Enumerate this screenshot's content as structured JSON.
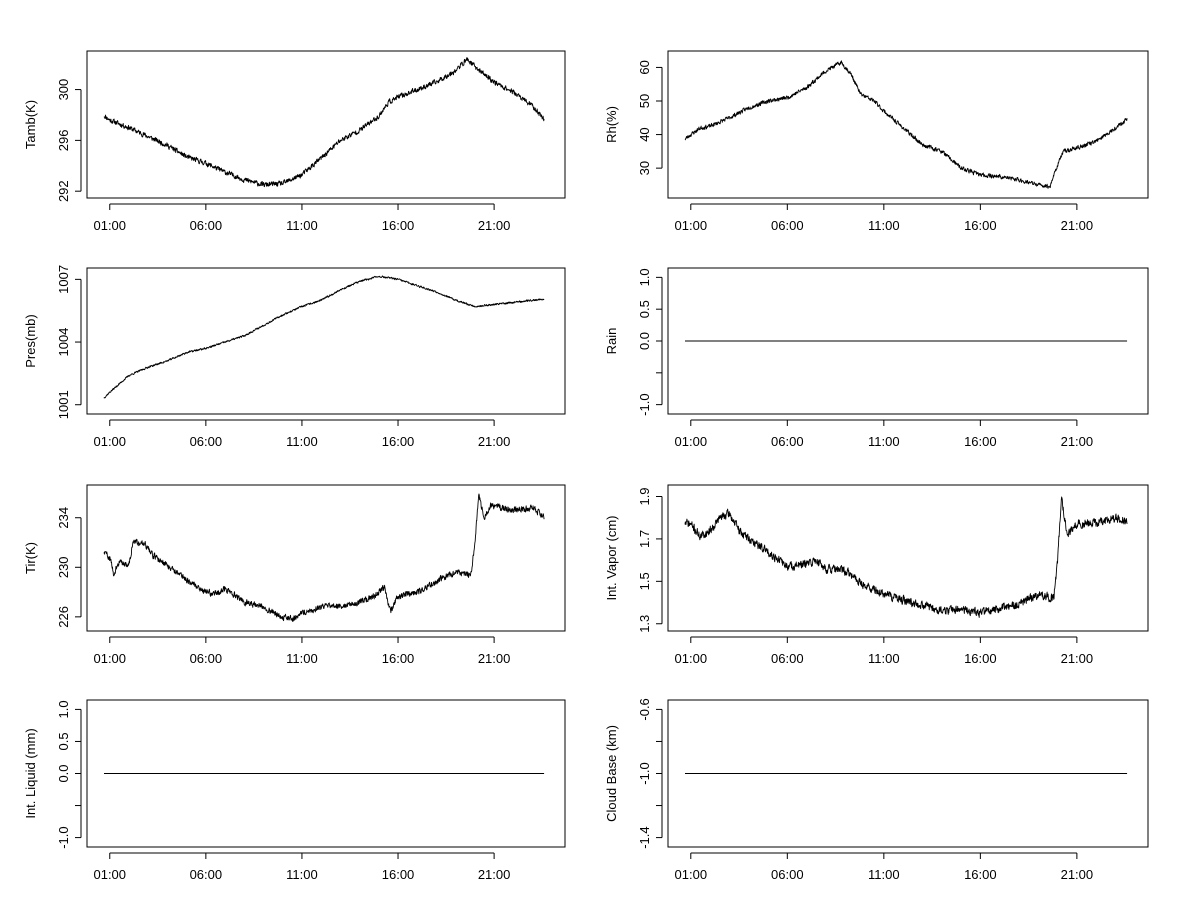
{
  "figure": {
    "background": "#ffffff",
    "line_color": "#000000"
  },
  "chart_data": [
    {
      "type": "line",
      "ylabel": "Tamb(K)",
      "x_ticks": [
        "01:00",
        "06:00",
        "11:00",
        "16:00",
        "21:00"
      ],
      "x_tick_hours": [
        1,
        6,
        11,
        16,
        21
      ],
      "xlim": [
        0,
        24
      ],
      "ylim": [
        291.7,
        302.8
      ],
      "y_ticks": [
        292,
        296,
        300
      ],
      "y_tick_labels": [
        "292",
        "296",
        "300"
      ],
      "series": [
        {
          "name": "Tamb(K)",
          "anchors": [
            [
              0,
              299.3
            ],
            [
              0.5,
              298.2
            ],
            [
              1,
              297.6
            ],
            [
              2,
              297.0
            ],
            [
              3,
              296.3
            ],
            [
              4,
              295.6
            ],
            [
              5,
              294.7
            ],
            [
              6,
              294.2
            ],
            [
              7,
              293.5
            ],
            [
              8,
              292.9
            ],
            [
              9,
              292.5
            ],
            [
              10,
              292.6
            ],
            [
              11,
              293.3
            ],
            [
              12,
              294.6
            ],
            [
              13,
              296.0
            ],
            [
              14,
              296.8
            ],
            [
              15,
              297.9
            ],
            [
              15.5,
              299.0
            ],
            [
              16,
              299.4
            ],
            [
              17,
              300.0
            ],
            [
              18,
              300.6
            ],
            [
              19,
              301.5
            ],
            [
              19.6,
              302.4
            ],
            [
              20,
              301.8
            ],
            [
              21,
              300.6
            ],
            [
              22,
              299.8
            ],
            [
              23,
              298.7
            ],
            [
              24,
              297.0
            ]
          ],
          "noise": 0.18,
          "seed": 11
        }
      ]
    },
    {
      "type": "line",
      "ylabel": "Rh(%)",
      "x_ticks": [
        "01:00",
        "06:00",
        "11:00",
        "16:00",
        "21:00"
      ],
      "x_tick_hours": [
        1,
        6,
        11,
        16,
        21
      ],
      "xlim": [
        0,
        24
      ],
      "ylim": [
        22,
        64
      ],
      "y_ticks": [
        30,
        40,
        50,
        60
      ],
      "y_tick_labels": [
        "30",
        "40",
        "50",
        "60"
      ],
      "series": [
        {
          "name": "Rh(%)",
          "anchors": [
            [
              0,
              35.5
            ],
            [
              1,
              40
            ],
            [
              1.5,
              42
            ],
            [
              2,
              42.5
            ],
            [
              3,
              45
            ],
            [
              4,
              48
            ],
            [
              5,
              50
            ],
            [
              6,
              51
            ],
            [
              7,
              54
            ],
            [
              8,
              59
            ],
            [
              8.8,
              61.5
            ],
            [
              9.3,
              58
            ],
            [
              9.8,
              52
            ],
            [
              10.5,
              50
            ],
            [
              11,
              47
            ],
            [
              12,
              42
            ],
            [
              13,
              37
            ],
            [
              14,
              35
            ],
            [
              15,
              30
            ],
            [
              16,
              28
            ],
            [
              17,
              27.5
            ],
            [
              18,
              26.5
            ],
            [
              19,
              25
            ],
            [
              19.6,
              24.5
            ],
            [
              20,
              31
            ],
            [
              20.3,
              35
            ],
            [
              21,
              36
            ],
            [
              22,
              38
            ],
            [
              23,
              42
            ],
            [
              24,
              46.5
            ]
          ],
          "noise": 0.55,
          "seed": 23
        }
      ]
    },
    {
      "type": "line",
      "ylabel": "Pres(mb)",
      "x_ticks": [
        "01:00",
        "06:00",
        "11:00",
        "16:00",
        "21:00"
      ],
      "x_tick_hours": [
        1,
        6,
        11,
        16,
        21
      ],
      "xlim": [
        0,
        24
      ],
      "ylim": [
        1000.7,
        1007.4
      ],
      "y_ticks": [
        1001,
        1004,
        1007
      ],
      "y_tick_labels": [
        "1001",
        "1004",
        "1007"
      ],
      "series": [
        {
          "name": "Pres(mb)",
          "anchors": [
            [
              0,
              1001.0
            ],
            [
              0.5,
              1001.15
            ],
            [
              1,
              1001.6
            ],
            [
              2,
              1002.4
            ],
            [
              3,
              1002.8
            ],
            [
              4,
              1003.1
            ],
            [
              5,
              1003.5
            ],
            [
              6,
              1003.7
            ],
            [
              7,
              1004.0
            ],
            [
              8,
              1004.3
            ],
            [
              9,
              1004.8
            ],
            [
              10,
              1005.3
            ],
            [
              11,
              1005.7
            ],
            [
              12,
              1006.0
            ],
            [
              13,
              1006.5
            ],
            [
              14,
              1006.9
            ],
            [
              15,
              1007.15
            ],
            [
              16,
              1007.0
            ],
            [
              17,
              1006.7
            ],
            [
              18,
              1006.4
            ],
            [
              19,
              1006.0
            ],
            [
              20,
              1005.7
            ],
            [
              21,
              1005.8
            ],
            [
              22,
              1005.9
            ],
            [
              23,
              1006.0
            ],
            [
              24,
              1006.1
            ]
          ],
          "noise": 0.04,
          "seed": 37
        }
      ]
    },
    {
      "type": "line",
      "ylabel": "Rain",
      "x_ticks": [
        "01:00",
        "06:00",
        "11:00",
        "16:00",
        "21:00"
      ],
      "x_tick_hours": [
        1,
        6,
        11,
        16,
        21
      ],
      "xlim": [
        0,
        24
      ],
      "ylim": [
        -1.1,
        1.1
      ],
      "y_ticks": [
        -1.0,
        -0.5,
        0.0,
        0.5,
        1.0
      ],
      "y_tick_labels": [
        "-1.0",
        "",
        "0.0",
        "0.5",
        "1.0"
      ],
      "series": [
        {
          "name": "Rain",
          "anchors": [
            [
              0,
              0
            ],
            [
              24,
              0
            ]
          ],
          "noise": 0,
          "seed": 1
        }
      ]
    },
    {
      "type": "line",
      "ylabel": "Tir(K)",
      "x_ticks": [
        "01:00",
        "06:00",
        "11:00",
        "16:00",
        "21:00"
      ],
      "x_tick_hours": [
        1,
        6,
        11,
        16,
        21
      ],
      "xlim": [
        0,
        24
      ],
      "ylim": [
        225.1,
        236.4
      ],
      "y_ticks": [
        226,
        230,
        234
      ],
      "y_tick_labels": [
        "226",
        "230",
        "234"
      ],
      "series": [
        {
          "name": "Tir(K)",
          "anchors": [
            [
              0,
              232.2
            ],
            [
              0.5,
              231.5
            ],
            [
              1,
              230.8
            ],
            [
              1.2,
              229.5
            ],
            [
              1.5,
              230.4
            ],
            [
              2,
              230.2
            ],
            [
              2.2,
              232.0
            ],
            [
              2.8,
              232.0
            ],
            [
              3.2,
              231.0
            ],
            [
              4,
              230.2
            ],
            [
              5,
              229.0
            ],
            [
              6,
              228.0
            ],
            [
              6.5,
              227.9
            ],
            [
              7,
              228.3
            ],
            [
              8,
              227.2
            ],
            [
              9,
              226.8
            ],
            [
              10,
              226.0
            ],
            [
              10.5,
              225.8
            ],
            [
              11,
              226.3
            ],
            [
              12,
              226.8
            ],
            [
              13,
              226.9
            ],
            [
              14,
              227.2
            ],
            [
              14.8,
              227.7
            ],
            [
              15.3,
              228.4
            ],
            [
              15.6,
              226.4
            ],
            [
              16,
              227.7
            ],
            [
              17,
              228.0
            ],
            [
              18,
              228.9
            ],
            [
              19,
              229.6
            ],
            [
              19.8,
              229.4
            ],
            [
              20,
              232.0
            ],
            [
              20.2,
              235.8
            ],
            [
              20.5,
              234.0
            ],
            [
              20.8,
              235.0
            ],
            [
              22,
              234.6
            ],
            [
              23,
              234.8
            ],
            [
              24,
              233.6
            ]
          ],
          "noise": 0.22,
          "seed": 59
        }
      ]
    },
    {
      "type": "line",
      "ylabel": "Int. Vapor (cm)",
      "x_ticks": [
        "01:00",
        "06:00",
        "11:00",
        "16:00",
        "21:00"
      ],
      "x_tick_hours": [
        1,
        6,
        11,
        16,
        21
      ],
      "xlim": [
        0,
        24
      ],
      "ylim": [
        1.28,
        1.94
      ],
      "y_ticks": [
        1.3,
        1.5,
        1.7,
        1.9
      ],
      "y_tick_labels": [
        "1.3",
        "1.5",
        "1.7",
        "1.9"
      ],
      "series": [
        {
          "name": "Int. Vapor (cm)",
          "anchors": [
            [
              0,
              1.8
            ],
            [
              0.5,
              1.78
            ],
            [
              1,
              1.77
            ],
            [
              1.5,
              1.71
            ],
            [
              2,
              1.74
            ],
            [
              2.5,
              1.8
            ],
            [
              3,
              1.82
            ],
            [
              3.5,
              1.74
            ],
            [
              4,
              1.7
            ],
            [
              5,
              1.64
            ],
            [
              6,
              1.57
            ],
            [
              7,
              1.58
            ],
            [
              7.5,
              1.6
            ],
            [
              8,
              1.56
            ],
            [
              9,
              1.55
            ],
            [
              10,
              1.48
            ],
            [
              11,
              1.44
            ],
            [
              12,
              1.41
            ],
            [
              13,
              1.39
            ],
            [
              14,
              1.36
            ],
            [
              15,
              1.37
            ],
            [
              16,
              1.35
            ],
            [
              17,
              1.37
            ],
            [
              18,
              1.39
            ],
            [
              19,
              1.44
            ],
            [
              19.8,
              1.42
            ],
            [
              20,
              1.6
            ],
            [
              20.2,
              1.9
            ],
            [
              20.5,
              1.72
            ],
            [
              21,
              1.77
            ],
            [
              22,
              1.78
            ],
            [
              23,
              1.8
            ],
            [
              24,
              1.77
            ]
          ],
          "noise": 0.018,
          "seed": 71
        }
      ]
    },
    {
      "type": "line",
      "ylabel": "Int. Liquid (mm)",
      "x_ticks": [
        "01:00",
        "06:00",
        "11:00",
        "16:00",
        "21:00"
      ],
      "x_tick_hours": [
        1,
        6,
        11,
        16,
        21
      ],
      "xlim": [
        0,
        24
      ],
      "ylim": [
        -1.1,
        1.1
      ],
      "y_ticks": [
        -1.0,
        -0.5,
        0.0,
        0.5,
        1.0
      ],
      "y_tick_labels": [
        "-1.0",
        "",
        "0.0",
        "0.5",
        "1.0"
      ],
      "series": [
        {
          "name": "Int. Liquid (mm)",
          "anchors": [
            [
              0,
              0
            ],
            [
              24,
              0
            ]
          ],
          "noise": 0,
          "seed": 2
        }
      ]
    },
    {
      "type": "line",
      "ylabel": "Cloud Base (km)",
      "x_ticks": [
        "01:00",
        "06:00",
        "11:00",
        "16:00",
        "21:00"
      ],
      "x_tick_hours": [
        1,
        6,
        11,
        16,
        21
      ],
      "xlim": [
        0,
        24
      ],
      "ylim": [
        -1.44,
        -0.56
      ],
      "y_ticks": [
        -1.4,
        -1.2,
        -1.0,
        -0.8,
        -0.6
      ],
      "y_tick_labels": [
        "-1.4",
        "",
        "-1.0",
        "",
        "-0.6"
      ],
      "series": [
        {
          "name": "Cloud Base (km)",
          "anchors": [
            [
              0,
              -1.0
            ],
            [
              24,
              -1.0
            ]
          ],
          "noise": 0,
          "seed": 3
        }
      ]
    }
  ]
}
